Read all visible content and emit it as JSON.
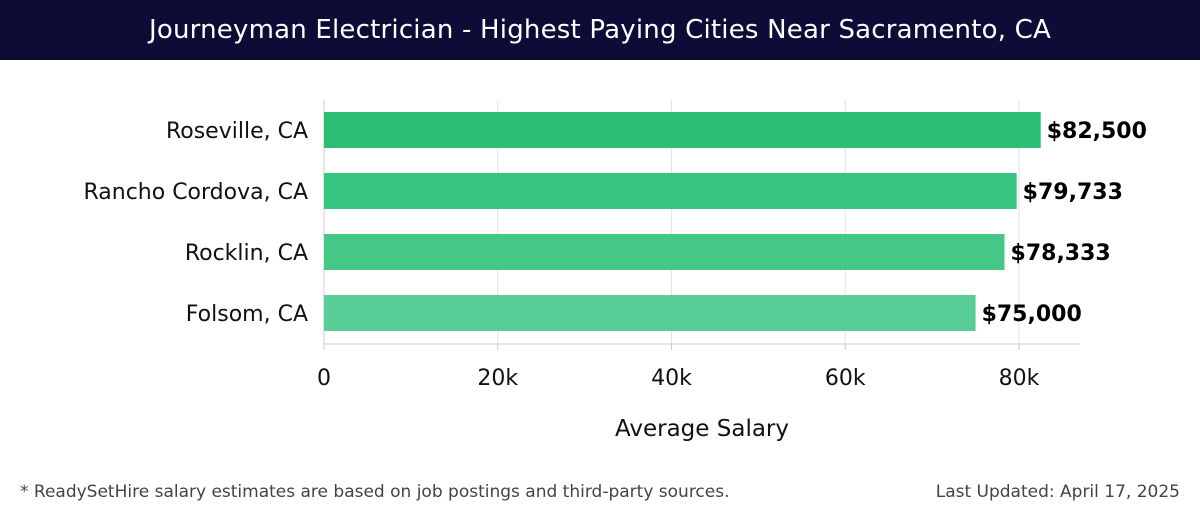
{
  "header": {
    "title": "Journeyman Electrician - Highest Paying Cities Near Sacramento, CA"
  },
  "footer": {
    "note": "* ReadySetHire salary estimates are based on job postings and third-party sources.",
    "updated": "Last Updated: April 17, 2025"
  },
  "colors": {
    "header_bg": "#0c0c36",
    "bars": [
      "#2bbf73",
      "#36c47e",
      "#44c787",
      "#58cd96"
    ]
  },
  "chart_data": {
    "type": "bar",
    "orientation": "horizontal",
    "categories": [
      "Roseville, CA",
      "Rancho Cordova, CA",
      "Rocklin, CA",
      "Folsom, CA"
    ],
    "values": [
      82500,
      79733,
      78333,
      75000
    ],
    "data_labels": [
      "$82,500",
      "$79,733",
      "$78,333",
      "$75,000"
    ],
    "xlabel": "Average Salary",
    "ylabel": "",
    "xlim": [
      0,
      87000
    ],
    "xticks": [
      0,
      20000,
      40000,
      60000,
      80000
    ],
    "xtick_labels": [
      "0",
      "20k",
      "40k",
      "60k",
      "80k"
    ],
    "grid": "vertical"
  }
}
